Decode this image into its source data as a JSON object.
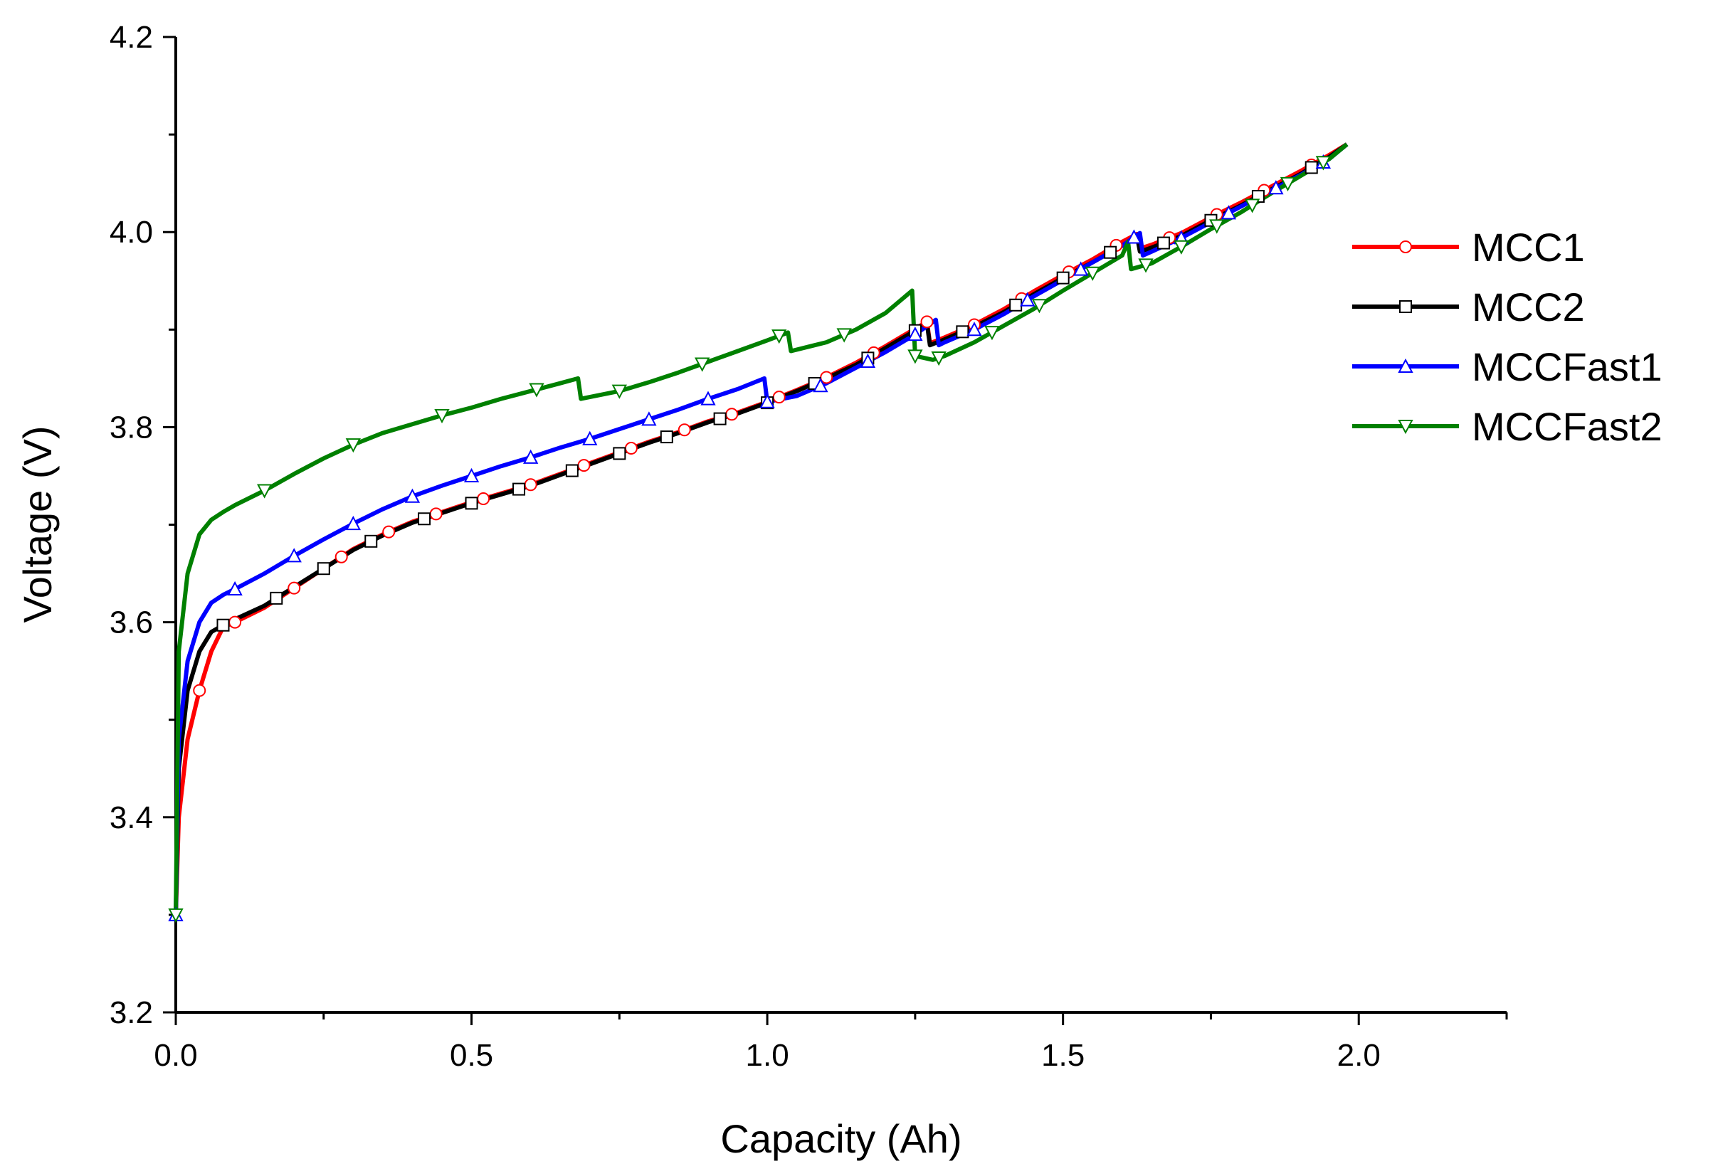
{
  "chart_data": {
    "type": "line",
    "title": "",
    "xlabel": "Capacity (Ah)",
    "ylabel": "Voltage (V)",
    "xlim": [
      0,
      2.25
    ],
    "ylim": [
      3.2,
      4.2
    ],
    "xticks": [
      "0.0",
      "0.5",
      "1.0",
      "1.5",
      "2.0"
    ],
    "yticks": [
      "3.2",
      "3.4",
      "3.6",
      "3.8",
      "4.0",
      "4.2"
    ],
    "legend_position": "right",
    "series": [
      {
        "name": "MCC1",
        "color": "#ff0000",
        "marker": "circle",
        "points": [
          [
            0,
            3.3
          ],
          [
            0.005,
            3.4
          ],
          [
            0.02,
            3.48
          ],
          [
            0.04,
            3.53
          ],
          [
            0.06,
            3.57
          ],
          [
            0.08,
            3.595
          ],
          [
            0.1,
            3.6
          ],
          [
            0.15,
            3.615
          ],
          [
            0.2,
            3.635
          ],
          [
            0.25,
            3.655
          ],
          [
            0.3,
            3.675
          ],
          [
            0.35,
            3.69
          ],
          [
            0.4,
            3.703
          ],
          [
            0.45,
            3.713
          ],
          [
            0.5,
            3.723
          ],
          [
            0.55,
            3.732
          ],
          [
            0.6,
            3.741
          ],
          [
            0.65,
            3.752
          ],
          [
            0.7,
            3.763
          ],
          [
            0.75,
            3.774
          ],
          [
            0.8,
            3.785
          ],
          [
            0.85,
            3.795
          ],
          [
            0.9,
            3.806
          ],
          [
            0.95,
            3.815
          ],
          [
            1.0,
            3.826
          ],
          [
            1.05,
            3.838
          ],
          [
            1.1,
            3.851
          ],
          [
            1.15,
            3.866
          ],
          [
            1.2,
            3.883
          ],
          [
            1.25,
            3.901
          ],
          [
            1.27,
            3.908
          ],
          [
            1.275,
            3.886
          ],
          [
            1.3,
            3.892
          ],
          [
            1.35,
            3.905
          ],
          [
            1.4,
            3.921
          ],
          [
            1.45,
            3.939
          ],
          [
            1.5,
            3.956
          ],
          [
            1.55,
            3.972
          ],
          [
            1.6,
            3.99
          ],
          [
            1.625,
            3.998
          ],
          [
            1.63,
            3.983
          ],
          [
            1.65,
            3.987
          ],
          [
            1.7,
            3.999
          ],
          [
            1.75,
            4.015
          ],
          [
            1.8,
            4.03
          ],
          [
            1.85,
            4.046
          ],
          [
            1.9,
            4.062
          ],
          [
            1.95,
            4.079
          ],
          [
            1.98,
            4.09
          ]
        ],
        "marker_x": [
          0.04,
          0.1,
          0.2,
          0.28,
          0.36,
          0.44,
          0.52,
          0.6,
          0.69,
          0.77,
          0.86,
          0.94,
          1.02,
          1.1,
          1.18,
          1.27,
          1.35,
          1.43,
          1.51,
          1.59,
          1.68,
          1.76,
          1.84,
          1.92
        ]
      },
      {
        "name": "MCC2",
        "color": "#000000",
        "marker": "square",
        "points": [
          [
            0,
            3.3
          ],
          [
            0.005,
            3.45
          ],
          [
            0.02,
            3.53
          ],
          [
            0.04,
            3.57
          ],
          [
            0.06,
            3.59
          ],
          [
            0.08,
            3.597
          ],
          [
            0.1,
            3.603
          ],
          [
            0.15,
            3.617
          ],
          [
            0.2,
            3.636
          ],
          [
            0.25,
            3.655
          ],
          [
            0.3,
            3.674
          ],
          [
            0.35,
            3.689
          ],
          [
            0.4,
            3.702
          ],
          [
            0.45,
            3.712
          ],
          [
            0.5,
            3.722
          ],
          [
            0.55,
            3.731
          ],
          [
            0.6,
            3.74
          ],
          [
            0.65,
            3.751
          ],
          [
            0.7,
            3.762
          ],
          [
            0.75,
            3.773
          ],
          [
            0.8,
            3.784
          ],
          [
            0.85,
            3.794
          ],
          [
            0.9,
            3.805
          ],
          [
            0.95,
            3.814
          ],
          [
            1.0,
            3.825
          ],
          [
            1.05,
            3.837
          ],
          [
            1.1,
            3.85
          ],
          [
            1.15,
            3.864
          ],
          [
            1.2,
            3.881
          ],
          [
            1.25,
            3.899
          ],
          [
            1.27,
            3.906
          ],
          [
            1.275,
            3.884
          ],
          [
            1.3,
            3.89
          ],
          [
            1.35,
            3.903
          ],
          [
            1.4,
            3.918
          ],
          [
            1.45,
            3.936
          ],
          [
            1.5,
            3.953
          ],
          [
            1.55,
            3.969
          ],
          [
            1.6,
            3.986
          ],
          [
            1.625,
            3.996
          ],
          [
            1.63,
            3.98
          ],
          [
            1.65,
            3.984
          ],
          [
            1.7,
            3.996
          ],
          [
            1.75,
            4.012
          ],
          [
            1.8,
            4.027
          ],
          [
            1.85,
            4.043
          ],
          [
            1.9,
            4.059
          ],
          [
            1.95,
            4.077
          ],
          [
            1.98,
            4.09
          ]
        ],
        "marker_x": [
          0.08,
          0.17,
          0.25,
          0.33,
          0.42,
          0.5,
          0.58,
          0.67,
          0.75,
          0.83,
          0.92,
          1.0,
          1.08,
          1.17,
          1.25,
          1.33,
          1.42,
          1.5,
          1.58,
          1.67,
          1.75,
          1.83,
          1.92
        ]
      },
      {
        "name": "MCCFast1",
        "color": "#0000ff",
        "marker": "triangle-up",
        "points": [
          [
            0,
            3.3
          ],
          [
            0.005,
            3.48
          ],
          [
            0.02,
            3.56
          ],
          [
            0.04,
            3.6
          ],
          [
            0.06,
            3.62
          ],
          [
            0.08,
            3.628
          ],
          [
            0.1,
            3.634
          ],
          [
            0.15,
            3.65
          ],
          [
            0.2,
            3.668
          ],
          [
            0.25,
            3.685
          ],
          [
            0.3,
            3.701
          ],
          [
            0.35,
            3.716
          ],
          [
            0.4,
            3.729
          ],
          [
            0.45,
            3.74
          ],
          [
            0.5,
            3.75
          ],
          [
            0.55,
            3.76
          ],
          [
            0.6,
            3.769
          ],
          [
            0.65,
            3.779
          ],
          [
            0.7,
            3.788
          ],
          [
            0.75,
            3.798
          ],
          [
            0.8,
            3.808
          ],
          [
            0.85,
            3.818
          ],
          [
            0.9,
            3.829
          ],
          [
            0.95,
            3.839
          ],
          [
            0.995,
            3.85
          ],
          [
            1.0,
            3.826
          ],
          [
            1.05,
            3.832
          ],
          [
            1.1,
            3.845
          ],
          [
            1.15,
            3.861
          ],
          [
            1.2,
            3.877
          ],
          [
            1.25,
            3.895
          ],
          [
            1.285,
            3.91
          ],
          [
            1.29,
            3.884
          ],
          [
            1.3,
            3.887
          ],
          [
            1.35,
            3.9
          ],
          [
            1.4,
            3.916
          ],
          [
            1.45,
            3.934
          ],
          [
            1.5,
            3.951
          ],
          [
            1.55,
            3.969
          ],
          [
            1.6,
            3.986
          ],
          [
            1.63,
            3.999
          ],
          [
            1.635,
            3.976
          ],
          [
            1.65,
            3.98
          ],
          [
            1.7,
            3.994
          ],
          [
            1.75,
            4.01
          ],
          [
            1.8,
            4.026
          ],
          [
            1.85,
            4.042
          ],
          [
            1.9,
            4.058
          ],
          [
            1.95,
            4.075
          ],
          [
            1.98,
            4.09
          ]
        ],
        "marker_x": [
          0,
          0.1,
          0.2,
          0.3,
          0.4,
          0.5,
          0.6,
          0.7,
          0.8,
          0.9,
          1.0,
          1.09,
          1.17,
          1.25,
          1.35,
          1.44,
          1.53,
          1.62,
          1.7,
          1.78,
          1.86,
          1.94
        ]
      },
      {
        "name": "MCCFast2",
        "color": "#008000",
        "marker": "triangle-down",
        "points": [
          [
            0,
            3.3
          ],
          [
            0.005,
            3.57
          ],
          [
            0.02,
            3.65
          ],
          [
            0.04,
            3.69
          ],
          [
            0.06,
            3.705
          ],
          [
            0.08,
            3.713
          ],
          [
            0.1,
            3.72
          ],
          [
            0.15,
            3.735
          ],
          [
            0.2,
            3.752
          ],
          [
            0.25,
            3.768
          ],
          [
            0.3,
            3.782
          ],
          [
            0.35,
            3.794
          ],
          [
            0.4,
            3.803
          ],
          [
            0.45,
            3.812
          ],
          [
            0.5,
            3.82
          ],
          [
            0.55,
            3.829
          ],
          [
            0.6,
            3.837
          ],
          [
            0.65,
            3.845
          ],
          [
            0.68,
            3.85
          ],
          [
            0.685,
            3.829
          ],
          [
            0.75,
            3.837
          ],
          [
            0.8,
            3.846
          ],
          [
            0.85,
            3.856
          ],
          [
            0.9,
            3.867
          ],
          [
            0.95,
            3.878
          ],
          [
            1.0,
            3.889
          ],
          [
            1.035,
            3.897
          ],
          [
            1.04,
            3.878
          ],
          [
            1.1,
            3.887
          ],
          [
            1.15,
            3.9
          ],
          [
            1.2,
            3.917
          ],
          [
            1.245,
            3.94
          ],
          [
            1.25,
            3.873
          ],
          [
            1.28,
            3.869
          ],
          [
            1.3,
            3.873
          ],
          [
            1.35,
            3.887
          ],
          [
            1.4,
            3.904
          ],
          [
            1.45,
            3.921
          ],
          [
            1.5,
            3.94
          ],
          [
            1.55,
            3.958
          ],
          [
            1.6,
            3.976
          ],
          [
            1.61,
            3.99
          ],
          [
            1.615,
            3.962
          ],
          [
            1.65,
            3.968
          ],
          [
            1.7,
            3.985
          ],
          [
            1.75,
            4.003
          ],
          [
            1.8,
            4.02
          ],
          [
            1.85,
            4.039
          ],
          [
            1.9,
            4.057
          ],
          [
            1.95,
            4.075
          ],
          [
            1.98,
            4.09
          ]
        ],
        "marker_x": [
          0,
          0.15,
          0.3,
          0.45,
          0.61,
          0.75,
          0.89,
          1.02,
          1.13,
          1.25,
          1.29,
          1.38,
          1.46,
          1.55,
          1.64,
          1.7,
          1.76,
          1.82,
          1.88,
          1.94
        ]
      }
    ]
  }
}
